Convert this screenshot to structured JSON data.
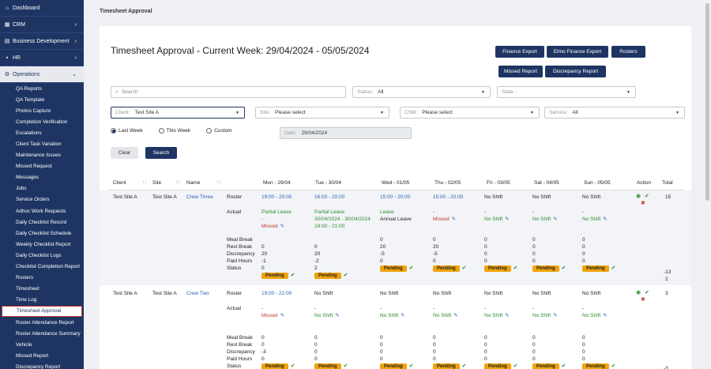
{
  "sidebar": {
    "top_items": [
      {
        "label": "Dashboard",
        "icon": "home-icon",
        "has_chevron": false
      },
      {
        "label": "CRM",
        "icon": "building-icon",
        "has_chevron": true
      },
      {
        "label": "Business Development",
        "icon": "briefcase-icon",
        "has_chevron": true
      },
      {
        "label": "HR",
        "icon": "users-icon",
        "has_chevron": true
      },
      {
        "label": "Operations",
        "icon": "gear-icon",
        "has_chevron": true
      }
    ],
    "sub_items": [
      "QA Reports",
      "QA Template",
      "Photos Capture",
      "Completion Verification",
      "Escalations",
      "Client Task Variation",
      "Maintenance Issues",
      "Missed Request",
      "Messages",
      "Jobs",
      "Service Orders",
      "Adhoc Work Requests",
      "Daily Checklist Record",
      "Daily Checklist Schedule",
      "Weekly Checklist Report",
      "Daily Checklist Logs",
      "Checklist Completion Report",
      "Rosters",
      "Timesheet",
      "Time Log",
      "Timesheet Approval",
      "Roster Attendance Report",
      "Roster Attendance Summary",
      "Vehicle",
      "Missed Report",
      "Discrepancy Report"
    ],
    "active_sub": "Timesheet Approval"
  },
  "breadcrumb": "Timesheet Approval",
  "page_title": "Timesheet Approval - Current Week: 29/04/2024 - 05/05/2024",
  "buttons": {
    "finance_export": "Finance Export",
    "elmo_finance_export": "Elmo Finance Export",
    "rosters": "Rosters",
    "missed_report": "Missed Report",
    "discrepancy_report": "Discrepancy Report",
    "clear": "Clear",
    "search": "Search"
  },
  "filters": {
    "search_placeholder": "Search",
    "status_label": "Status:",
    "status_value": "All",
    "state_label": "State :",
    "state_value": "",
    "client_label": "Client:",
    "client_value": "Test Site A",
    "site_label": "Site:",
    "site_value": "Please select",
    "csm_label": "CSM:",
    "csm_value": "Please select",
    "service_label": "Service:",
    "service_value": "All",
    "radio_last_week": "Last Week",
    "radio_this_week": "This Week",
    "radio_custom": "Custom",
    "date_label": "Date:",
    "date_value": "29/04/2024"
  },
  "table": {
    "headers": {
      "client": "Client",
      "site": "Site",
      "name": "Name",
      "mon": "Mon - 29/04",
      "tue": "Tue - 30/04",
      "wed": "Wed - 01/05",
      "thu": "Thu - 02/05",
      "fri": "Fri - 03/05",
      "sat": "Sat - 04/05",
      "sun": "Sun - 05/05",
      "action": "Action",
      "total": "Total"
    },
    "row_labels": {
      "roster": "Roster",
      "actual": "Actual",
      "meal_break": "Meal Break",
      "rest_break": "Rest Break",
      "discrepancy": "Discrepancy",
      "paid_hours": "Paid Hours",
      "status": "Status"
    },
    "status_pending": "Pending",
    "rows": [
      {
        "client": "Test Site A",
        "site": "Test Site A",
        "name": "Crew Three",
        "total": "15",
        "roster": [
          "19:00 - 20:00",
          "16:00 - 20:00",
          "15:00 - 20:00",
          "15:00 - 20:00",
          "No Shift",
          "No Shift",
          "No Shift"
        ],
        "actual_line1": [
          "Partial Leave",
          "Partial Leave",
          "Leave",
          "-",
          "-",
          "-",
          "-"
        ],
        "actual_line2": [
          "-",
          "30/04/2024 - 30/04/2024",
          "Annual Leave",
          "Missed",
          "No Shift",
          "No Shift",
          "No Shift"
        ],
        "actual_line3": [
          "Missed",
          "19:00 - 21:00",
          "",
          "",
          "",
          "",
          ""
        ],
        "meal_break": [
          "",
          "",
          "0",
          "0",
          "0",
          "0",
          "0"
        ],
        "rest_break": [
          "0",
          "0",
          "20",
          "20",
          "0",
          "0",
          "0"
        ],
        "discrepancy": [
          "20",
          "20",
          "-5",
          "-5",
          "0",
          "0",
          "0"
        ],
        "paid_hours": [
          "-1",
          "-2",
          "0",
          "0",
          "0",
          "0",
          "0"
        ],
        "status_extra": [
          "0",
          "2",
          "",
          "",
          "",
          "",
          ""
        ],
        "total_discrepancy": "-13",
        "total_paid": "2"
      },
      {
        "client": "Test Site A",
        "site": "Test Site A",
        "name": "Crew Two",
        "total": "3",
        "roster": [
          "19:00 - 22:00",
          "No Shift",
          "No Shift",
          "No Shift",
          "No Shift",
          "No Shift",
          "No Shift"
        ],
        "actual_line1": [
          "-",
          "-",
          "-",
          "-",
          "-",
          "-",
          "-"
        ],
        "actual_line2": [
          "Missed",
          "No Shift",
          "No Shift",
          "No Shift",
          "No Shift",
          "No Shift",
          "No Shift"
        ],
        "meal_break": [
          "0",
          "0",
          "0",
          "0",
          "0",
          "0",
          "0"
        ],
        "rest_break": [
          "0",
          "0",
          "0",
          "0",
          "0",
          "0",
          "0"
        ],
        "discrepancy": [
          "-3",
          "0",
          "0",
          "0",
          "0",
          "0",
          "0"
        ],
        "paid_hours": [
          "0",
          "0",
          "0",
          "0",
          "0",
          "0",
          "0"
        ],
        "total_discrepancy": "-3"
      }
    ]
  },
  "colors": {
    "navy": "#1e3563",
    "pending": "#f0a30a",
    "green": "#2e8b2e",
    "red": "#c0392b",
    "blue": "#2a62b8"
  }
}
